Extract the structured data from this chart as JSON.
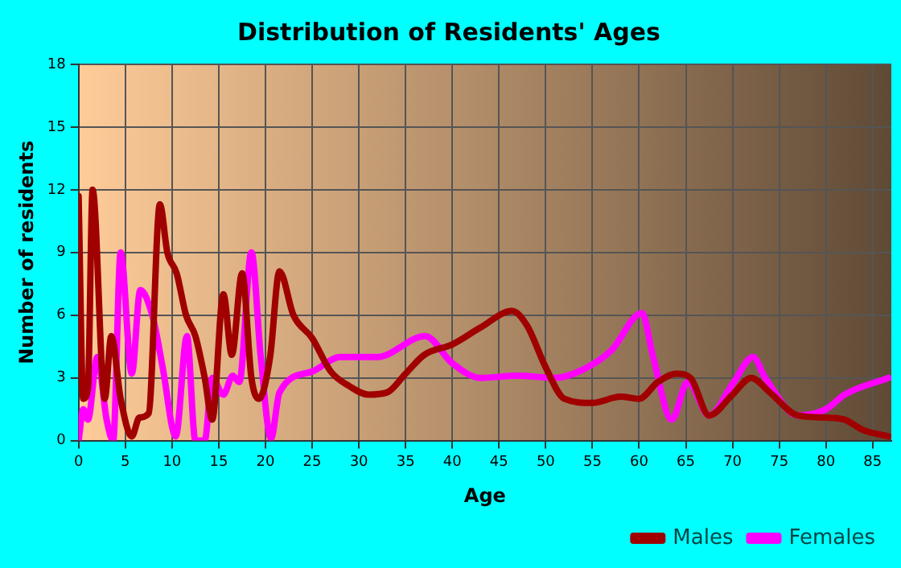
{
  "chart_data": {
    "type": "line",
    "title": "Distribution of Residents' Ages",
    "xlabel": "Age",
    "ylabel": "Number of residents",
    "xlim": [
      0,
      87
    ],
    "xticks": [
      0,
      5,
      10,
      15,
      20,
      25,
      30,
      35,
      40,
      45,
      50,
      55,
      60,
      65,
      70,
      75,
      80,
      85
    ],
    "ylim": [
      0,
      18
    ],
    "yticks": [
      0,
      3,
      6,
      9,
      12,
      15,
      18
    ],
    "grid": true,
    "legend": "bottom right",
    "marker": "none",
    "line_style": "solid",
    "series": [
      {
        "name": "Males",
        "color": "#a00000",
        "x": [
          0,
          0.5,
          1,
          1.5,
          2.8,
          3.5,
          4.5,
          5.7,
          6.5,
          7.5,
          8.7,
          9.5,
          10.5,
          11.5,
          12.5,
          13.5,
          14.3,
          15.5,
          16.4,
          17.5,
          18.5,
          19.3,
          20.5,
          21.5,
          23,
          25,
          27,
          29,
          31,
          33,
          35,
          37,
          40,
          43,
          46.4,
          48,
          50,
          52,
          55,
          58,
          60,
          62,
          64,
          65.5,
          67.5,
          70,
          72,
          74,
          77,
          80,
          82,
          84,
          86.7
        ],
        "values": [
          11.7,
          2,
          2.5,
          12,
          2,
          5,
          2,
          0.2,
          1.1,
          1.3,
          11.3,
          9,
          8,
          6,
          5,
          3,
          1,
          7,
          4.1,
          8,
          3,
          2,
          4,
          8.1,
          6,
          4.9,
          3.3,
          2.6,
          2.2,
          2.3,
          3.2,
          4.1,
          4.6,
          5.4,
          6.2,
          5.5,
          3.5,
          2,
          1.8,
          2.1,
          2,
          2.8,
          3.2,
          3,
          1.2,
          2.2,
          3,
          2.3,
          1.2,
          1.1,
          1,
          0.5,
          0.2
        ]
      },
      {
        "name": "Females",
        "color": "#ff00ff",
        "x": [
          0,
          0.5,
          1,
          2,
          3,
          3.7,
          4.5,
          5.7,
          6.6,
          8,
          9,
          10.4,
          11.6,
          12.5,
          13.5,
          14.3,
          15.5,
          16.5,
          17.2,
          18.5,
          19.5,
          20.6,
          21.5,
          25,
          28,
          32,
          37.1,
          40,
          43,
          47,
          51,
          54,
          57,
          60.3,
          61.5,
          63.5,
          65.2,
          67.5,
          70,
          72.2,
          73.5,
          77,
          80,
          82,
          86.7
        ],
        "values": [
          0,
          1.5,
          1,
          4,
          1,
          0,
          9,
          3.2,
          7.2,
          5.8,
          3.5,
          0.2,
          5,
          0,
          0,
          3,
          2.2,
          3.1,
          2.8,
          9,
          4,
          0.1,
          2.3,
          3.3,
          4,
          4,
          5,
          3.7,
          3,
          3.1,
          3,
          3.4,
          4.3,
          6.1,
          4,
          1,
          2.8,
          1.2,
          2.7,
          4,
          3,
          1.2,
          1.5,
          2.2,
          3
        ]
      }
    ]
  }
}
